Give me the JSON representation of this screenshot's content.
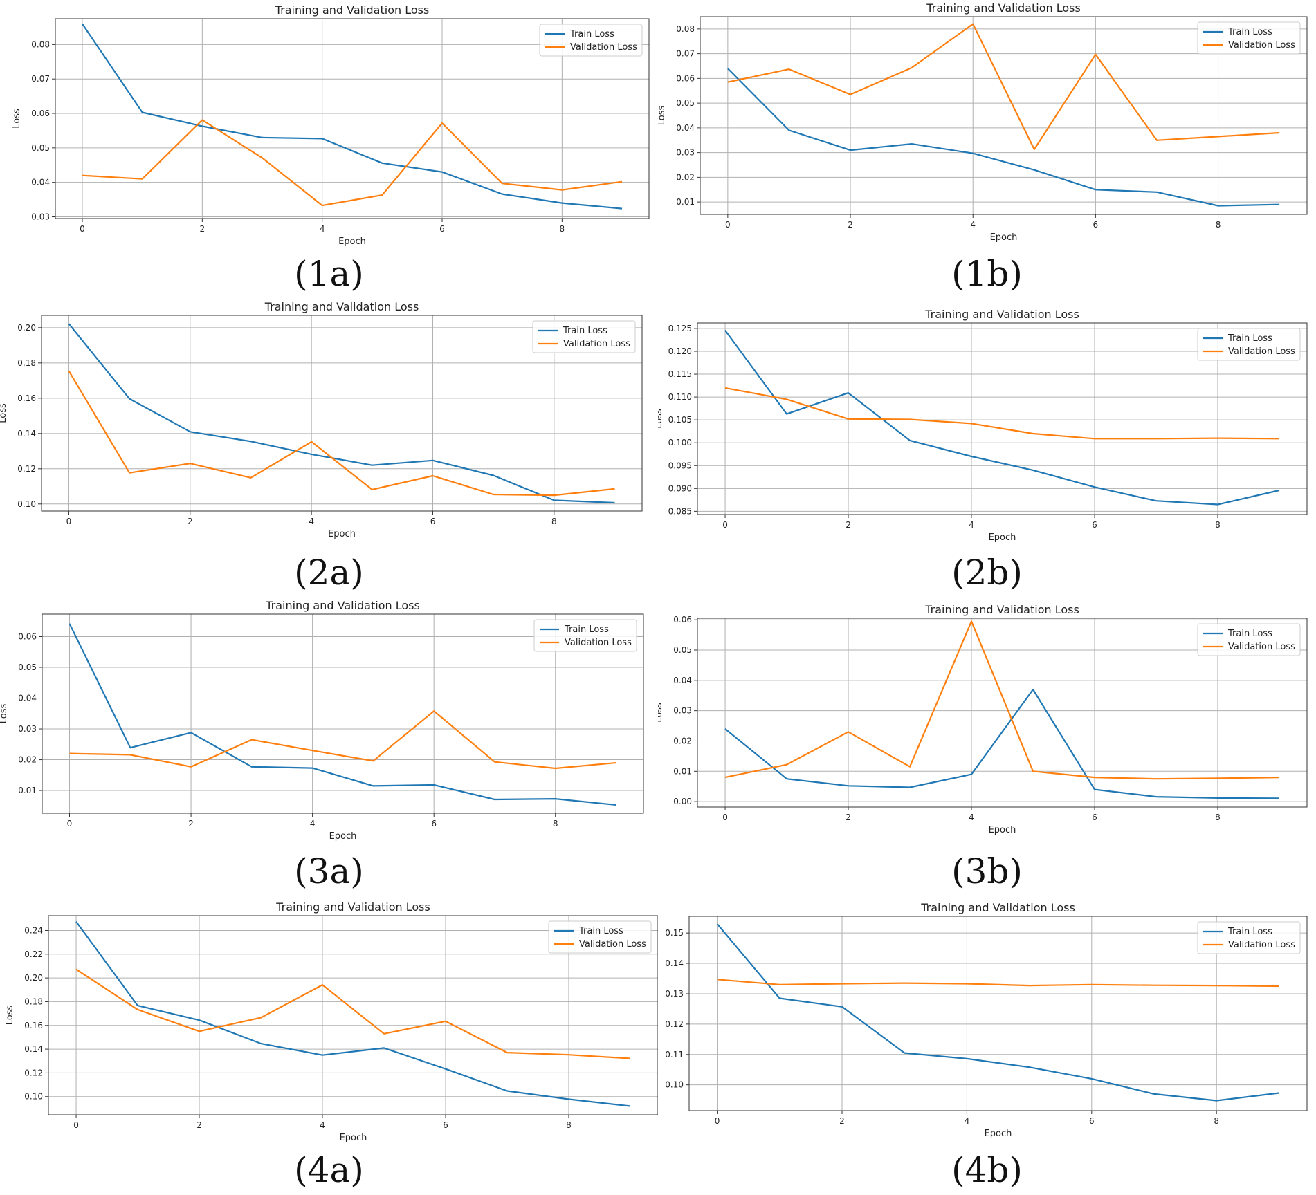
{
  "colors": {
    "train": "#1f77b4",
    "validation": "#ff7f0e",
    "grid": "#b0b0b0",
    "axis": "#333333"
  },
  "chart_data": [
    {
      "id": "1a",
      "caption": "(1a)",
      "type": "line",
      "title": "Training and Validation Loss",
      "xlabel": "Epoch",
      "ylabel": "Loss",
      "xlim": [
        -0.45,
        9.45
      ],
      "ylim": [
        0.0295,
        0.0875
      ],
      "xticks": [
        0,
        2,
        4,
        6,
        8
      ],
      "xtick_labels": [
        "0",
        "2",
        "4",
        "6",
        "8"
      ],
      "yticks": [
        0.03,
        0.04,
        0.05,
        0.06,
        0.07,
        0.08
      ],
      "ytick_labels": [
        "0.03",
        "0.04",
        "0.05",
        "0.06",
        "0.07",
        "0.08"
      ],
      "grid": true,
      "legend": "top-right",
      "x": [
        0,
        1,
        2,
        3,
        4,
        5,
        6,
        7,
        8,
        9
      ],
      "series": [
        {
          "name": "Train Loss",
          "values": [
            0.086,
            0.0603,
            0.0563,
            0.053,
            0.0527,
            0.0456,
            0.043,
            0.0366,
            0.034,
            0.0324
          ]
        },
        {
          "name": "Validation Loss",
          "values": [
            0.042,
            0.041,
            0.0581,
            0.0471,
            0.0333,
            0.0363,
            0.0572,
            0.0397,
            0.0378,
            0.0402
          ]
        }
      ]
    },
    {
      "id": "1b",
      "caption": "(1b)",
      "type": "line",
      "title": "Training and Validation Loss",
      "xlabel": "Epoch",
      "ylabel": "Loss",
      "xlim": [
        -0.45,
        9.45
      ],
      "ylim": [
        0.005,
        0.085
      ],
      "xticks": [
        0,
        2,
        4,
        6,
        8
      ],
      "xtick_labels": [
        "0",
        "2",
        "4",
        "6",
        "8"
      ],
      "yticks": [
        0.01,
        0.02,
        0.03,
        0.04,
        0.05,
        0.06,
        0.07,
        0.08
      ],
      "ytick_labels": [
        "0.01",
        "0.02",
        "0.03",
        "0.04",
        "0.05",
        "0.06",
        "0.07",
        "0.08"
      ],
      "grid": true,
      "legend": "top-right",
      "x": [
        0,
        1,
        2,
        3,
        4,
        5,
        6,
        7,
        8,
        9
      ],
      "series": [
        {
          "name": "Train Loss",
          "values": [
            0.064,
            0.039,
            0.031,
            0.0335,
            0.0297,
            0.023,
            0.015,
            0.014,
            0.0085,
            0.009
          ]
        },
        {
          "name": "Validation Loss",
          "values": [
            0.0585,
            0.0637,
            0.0535,
            0.0643,
            0.082,
            0.0313,
            0.0697,
            0.035,
            0.0365,
            0.038
          ]
        }
      ]
    },
    {
      "id": "2a",
      "caption": "(2a)",
      "type": "line",
      "title": "Training and Validation Loss",
      "xlabel": "Epoch",
      "ylabel": "Loss",
      "xlim": [
        -0.45,
        9.45
      ],
      "ylim": [
        0.096,
        0.207
      ],
      "xticks": [
        0,
        2,
        4,
        6,
        8
      ],
      "xtick_labels": [
        "0",
        "2",
        "4",
        "6",
        "8"
      ],
      "yticks": [
        0.1,
        0.12,
        0.14,
        0.16,
        0.18,
        0.2
      ],
      "ytick_labels": [
        "0.10",
        "0.12",
        "0.14",
        "0.16",
        "0.18",
        "0.20"
      ],
      "grid": true,
      "legend": "top-right",
      "x": [
        0,
        1,
        2,
        3,
        4,
        5,
        6,
        7,
        8,
        9
      ],
      "series": [
        {
          "name": "Train Loss",
          "values": [
            0.2022,
            0.1597,
            0.141,
            0.1355,
            0.1282,
            0.122,
            0.1247,
            0.1162,
            0.1021,
            0.1007
          ]
        },
        {
          "name": "Validation Loss",
          "values": [
            0.1755,
            0.1177,
            0.123,
            0.1149,
            0.1353,
            0.1082,
            0.116,
            0.1054,
            0.105,
            0.1086
          ]
        }
      ]
    },
    {
      "id": "2b",
      "caption": "(2b)",
      "type": "line",
      "title": "Training and Validation Loss",
      "xlabel": "Epoch",
      "ylabel": "Loss",
      "xlim": [
        -0.45,
        9.45
      ],
      "ylim": [
        0.0843,
        0.1262
      ],
      "xticks": [
        0,
        2,
        4,
        6,
        8
      ],
      "xtick_labels": [
        "0",
        "2",
        "4",
        "6",
        "8"
      ],
      "yticks": [
        0.085,
        0.09,
        0.095,
        0.1,
        0.105,
        0.11,
        0.115,
        0.12,
        0.125
      ],
      "ytick_labels": [
        "0.085",
        "0.090",
        "0.095",
        "0.100",
        "0.105",
        "0.110",
        "0.115",
        "0.120",
        "0.125"
      ],
      "grid": true,
      "legend": "top-right",
      "x": [
        0,
        1,
        2,
        3,
        4,
        5,
        6,
        7,
        8,
        9
      ],
      "series": [
        {
          "name": "Train Loss",
          "values": [
            0.1246,
            0.1063,
            0.1109,
            0.1005,
            0.097,
            0.094,
            0.0903,
            0.0873,
            0.0865,
            0.0896
          ]
        },
        {
          "name": "Validation Loss",
          "values": [
            0.112,
            0.1095,
            0.1052,
            0.1051,
            0.1042,
            0.102,
            0.1009,
            0.1009,
            0.101,
            0.1009
          ]
        }
      ]
    },
    {
      "id": "3a",
      "caption": "(3a)",
      "type": "line",
      "title": "Training and Validation Loss",
      "xlabel": "Epoch",
      "ylabel": "Loss",
      "xlim": [
        -0.45,
        9.45
      ],
      "ylim": [
        0.0026,
        0.0673
      ],
      "xticks": [
        0,
        2,
        4,
        6,
        8
      ],
      "xtick_labels": [
        "0",
        "2",
        "4",
        "6",
        "8"
      ],
      "yticks": [
        0.01,
        0.02,
        0.03,
        0.04,
        0.05,
        0.06
      ],
      "ytick_labels": [
        "0.01",
        "0.02",
        "0.03",
        "0.04",
        "0.05",
        "0.06"
      ],
      "grid": true,
      "legend": "top-right",
      "x": [
        0,
        1,
        2,
        3,
        4,
        5,
        6,
        7,
        8,
        9
      ],
      "series": [
        {
          "name": "Train Loss",
          "values": [
            0.0642,
            0.0239,
            0.0288,
            0.0177,
            0.0173,
            0.0115,
            0.0118,
            0.0071,
            0.0073,
            0.0053
          ]
        },
        {
          "name": "Validation Loss",
          "values": [
            0.022,
            0.0216,
            0.0177,
            0.0265,
            0.023,
            0.0196,
            0.0358,
            0.0193,
            0.0172,
            0.019
          ]
        }
      ]
    },
    {
      "id": "3b",
      "caption": "(3b)",
      "type": "line",
      "title": "Training and Validation Loss",
      "xlabel": "Epoch",
      "ylabel": "Loss",
      "xlim": [
        -0.45,
        9.45
      ],
      "ylim": [
        -0.0018,
        0.0605
      ],
      "xticks": [
        0,
        2,
        4,
        6,
        8
      ],
      "xtick_labels": [
        "0",
        "2",
        "4",
        "6",
        "8"
      ],
      "yticks": [
        0.0,
        0.01,
        0.02,
        0.03,
        0.04,
        0.05,
        0.06
      ],
      "ytick_labels": [
        "0.00",
        "0.01",
        "0.02",
        "0.03",
        "0.04",
        "0.05",
        "0.06"
      ],
      "grid": true,
      "legend": "top-right",
      "x": [
        0,
        1,
        2,
        3,
        4,
        5,
        6,
        7,
        8,
        9
      ],
      "series": [
        {
          "name": "Train Loss",
          "values": [
            0.024,
            0.0075,
            0.0052,
            0.0047,
            0.009,
            0.037,
            0.004,
            0.0016,
            0.0012,
            0.0011
          ]
        },
        {
          "name": "Validation Loss",
          "values": [
            0.008,
            0.0122,
            0.023,
            0.0115,
            0.0595,
            0.01,
            0.008,
            0.0075,
            0.0077,
            0.008
          ]
        }
      ]
    },
    {
      "id": "4a",
      "caption": "(4a)",
      "type": "line",
      "title": "Training and Validation Loss",
      "xlabel": "Epoch",
      "ylabel": "Loss",
      "xlim": [
        -0.45,
        9.45
      ],
      "ylim": [
        0.0847,
        0.2525
      ],
      "xticks": [
        0,
        2,
        4,
        6,
        8
      ],
      "xtick_labels": [
        "0",
        "2",
        "4",
        "6",
        "8"
      ],
      "yticks": [
        0.1,
        0.12,
        0.14,
        0.16,
        0.18,
        0.2,
        0.22,
        0.24
      ],
      "ytick_labels": [
        "0.10",
        "0.12",
        "0.14",
        "0.16",
        "0.18",
        "0.20",
        "0.22",
        "0.24"
      ],
      "grid": true,
      "legend": "top-right",
      "x": [
        0,
        1,
        2,
        3,
        4,
        5,
        6,
        7,
        8,
        9
      ],
      "series": [
        {
          "name": "Train Loss",
          "values": [
            0.2475,
            0.1767,
            0.1644,
            0.1447,
            0.135,
            0.141,
            0.1233,
            0.1048,
            0.0978,
            0.092
          ]
        },
        {
          "name": "Validation Loss",
          "values": [
            0.2073,
            0.1733,
            0.155,
            0.1665,
            0.1942,
            0.153,
            0.1635,
            0.1371,
            0.1353,
            0.1322
          ]
        }
      ]
    },
    {
      "id": "4b",
      "caption": "(4b)",
      "type": "line",
      "title": "Training and Validation Loss",
      "xlabel": "Epoch",
      "ylabel": "Loss",
      "xlim": [
        -0.45,
        9.45
      ],
      "ylim": [
        0.0915,
        0.1555
      ],
      "xticks": [
        0,
        2,
        4,
        6,
        8
      ],
      "xtick_labels": [
        "0",
        "2",
        "4",
        "6",
        "8"
      ],
      "yticks": [
        0.1,
        0.11,
        0.12,
        0.13,
        0.14,
        0.15
      ],
      "ytick_labels": [
        "0.10",
        "0.11",
        "0.12",
        "0.13",
        "0.14",
        "0.15"
      ],
      "grid": true,
      "legend": "top-right",
      "x": [
        0,
        1,
        2,
        3,
        4,
        5,
        6,
        7,
        8,
        9
      ],
      "series": [
        {
          "name": "Train Loss",
          "values": [
            0.153,
            0.1285,
            0.1257,
            0.1105,
            0.1086,
            0.1058,
            0.102,
            0.097,
            0.0948,
            0.0973
          ]
        },
        {
          "name": "Validation Loss",
          "values": [
            0.1347,
            0.133,
            0.1333,
            0.1335,
            0.1333,
            0.1327,
            0.133,
            0.1328,
            0.1327,
            0.1325
          ]
        }
      ]
    }
  ]
}
